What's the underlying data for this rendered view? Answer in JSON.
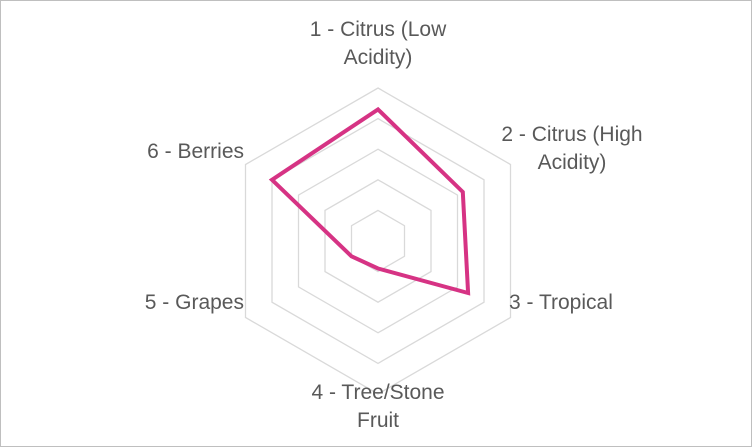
{
  "chart_data": {
    "type": "radar",
    "categories": [
      "1 - Citrus (Low Acidity)",
      "2 - Citrus (High Acidity)",
      "3 - Tropical",
      "4 - Tree/Stone Fruit",
      "5 - Grapes",
      "6 - Berries"
    ],
    "label_lines": [
      [
        "1 - Citrus (Low",
        "Acidity)"
      ],
      [
        "2 - Citrus (High",
        "Acidity)"
      ],
      [
        "3 - Tropical"
      ],
      [
        "4 - Tree/Stone",
        "Fruit"
      ],
      [
        "5 - Grapes"
      ],
      [
        "6 - Berries"
      ]
    ],
    "series": [
      {
        "values": [
          4.3,
          3.2,
          3.4,
          0.9,
          1.0,
          4.0
        ],
        "color": "#d63384"
      }
    ],
    "rmax": 5,
    "ring_count": 5,
    "grid": true,
    "grid_color": "#d9d9d9",
    "label_color": "#595959",
    "legend": "none"
  }
}
